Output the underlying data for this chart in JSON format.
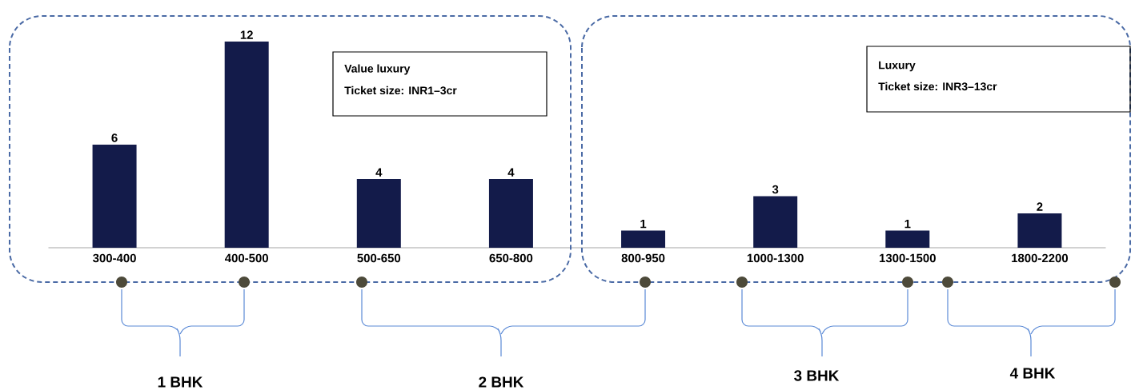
{
  "chart_data": {
    "type": "bar",
    "categories": [
      "300-400",
      "400-500",
      "500-650",
      "650-800",
      "800-950",
      "1000-1300",
      "1300-1500",
      "1800-2200"
    ],
    "values": [
      6,
      12,
      4,
      4,
      1,
      3,
      1,
      2
    ],
    "color": "#131b4a",
    "data_labels": true,
    "annotations": [
      "Value luxury",
      "Ticket size: INR1–3cr",
      "Luxury",
      "Ticket size: INR3–13cr",
      "1 BHK",
      "2 BHK",
      "3 BHK",
      "4 BHK"
    ]
  }
}
